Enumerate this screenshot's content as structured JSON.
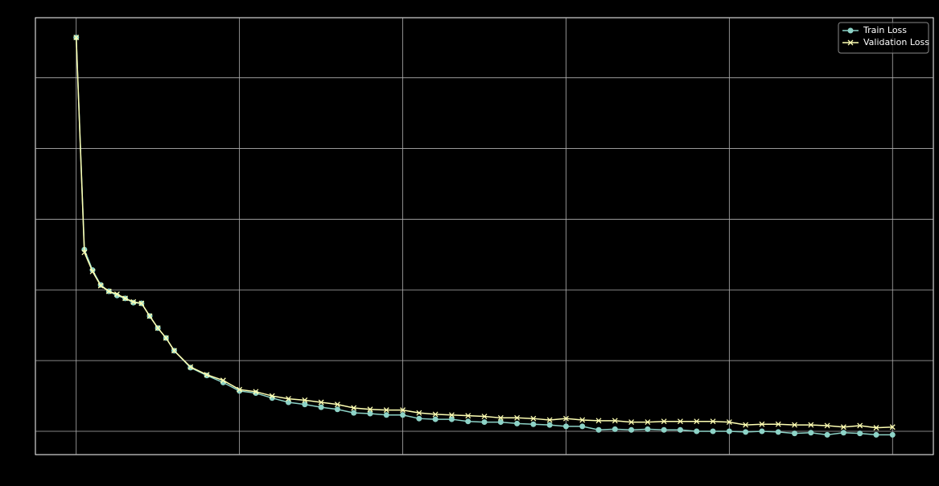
{
  "chart_data": {
    "type": "line",
    "x": [
      0,
      1,
      2,
      3,
      4,
      5,
      6,
      7,
      8,
      9,
      10,
      11,
      12,
      14,
      16,
      18,
      20,
      22,
      24,
      26,
      28,
      30,
      32,
      34,
      36,
      38,
      40,
      42,
      44,
      46,
      48,
      50,
      52,
      54,
      56,
      58,
      60,
      62,
      64,
      66,
      68,
      70,
      72,
      74,
      76,
      78,
      80,
      82,
      84,
      86,
      88,
      90,
      92,
      94,
      96,
      98,
      100
    ],
    "series": [
      {
        "name": "Train Loss",
        "color": "#8dd3c7",
        "marker": "o",
        "values": [
          6.57,
          3.57,
          3.28,
          3.07,
          2.98,
          2.92,
          2.88,
          2.82,
          2.81,
          2.63,
          2.46,
          2.32,
          2.14,
          1.9,
          1.79,
          1.69,
          1.57,
          1.54,
          1.47,
          1.41,
          1.38,
          1.34,
          1.31,
          1.26,
          1.25,
          1.23,
          1.23,
          1.18,
          1.17,
          1.17,
          1.14,
          1.13,
          1.13,
          1.11,
          1.1,
          1.09,
          1.07,
          1.07,
          1.02,
          1.03,
          1.02,
          1.03,
          1.02,
          1.02,
          1.0,
          1.0,
          1.0,
          0.99,
          1.0,
          0.99,
          0.97,
          0.98,
          0.95,
          0.98,
          0.97,
          0.95,
          0.95
        ]
      },
      {
        "name": "Validation Loss",
        "color": "#feffb3",
        "marker": "x",
        "values": [
          6.57,
          3.53,
          3.26,
          3.06,
          2.98,
          2.94,
          2.88,
          2.83,
          2.81,
          2.63,
          2.46,
          2.32,
          2.14,
          1.91,
          1.8,
          1.72,
          1.59,
          1.56,
          1.5,
          1.46,
          1.44,
          1.41,
          1.38,
          1.33,
          1.31,
          1.3,
          1.3,
          1.26,
          1.24,
          1.23,
          1.22,
          1.21,
          1.19,
          1.19,
          1.18,
          1.16,
          1.18,
          1.16,
          1.15,
          1.15,
          1.13,
          1.13,
          1.14,
          1.14,
          1.14,
          1.14,
          1.13,
          1.09,
          1.1,
          1.1,
          1.09,
          1.09,
          1.08,
          1.06,
          1.08,
          1.05,
          1.06
        ]
      }
    ],
    "xlim": [
      -5,
      105
    ],
    "xticks": [
      0,
      20,
      40,
      60,
      80,
      100
    ],
    "ylim": [
      0.67,
      6.85
    ],
    "yticks": [
      1,
      2,
      3,
      4,
      5,
      6
    ],
    "grid": true,
    "legend": "upper right"
  }
}
